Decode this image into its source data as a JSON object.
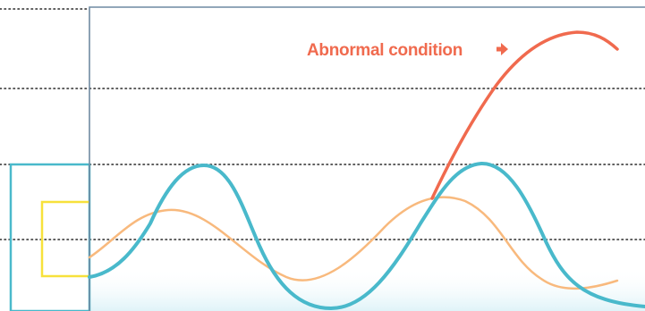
{
  "annotation": {
    "text": "Abnormal condition",
    "arrow": "right-arrow-icon",
    "color": "#f06a4e"
  },
  "colors": {
    "normal_wave": "#49b9cb",
    "secondary_wave": "#f8b97d",
    "abnormal_wave": "#f06a4e",
    "frame": "#6f8aa2",
    "baseline_box": "#49b9cb",
    "small_box": "#f7e13b",
    "gridline": "#2a2a2a",
    "floor_band": "#dff3f8"
  }
}
